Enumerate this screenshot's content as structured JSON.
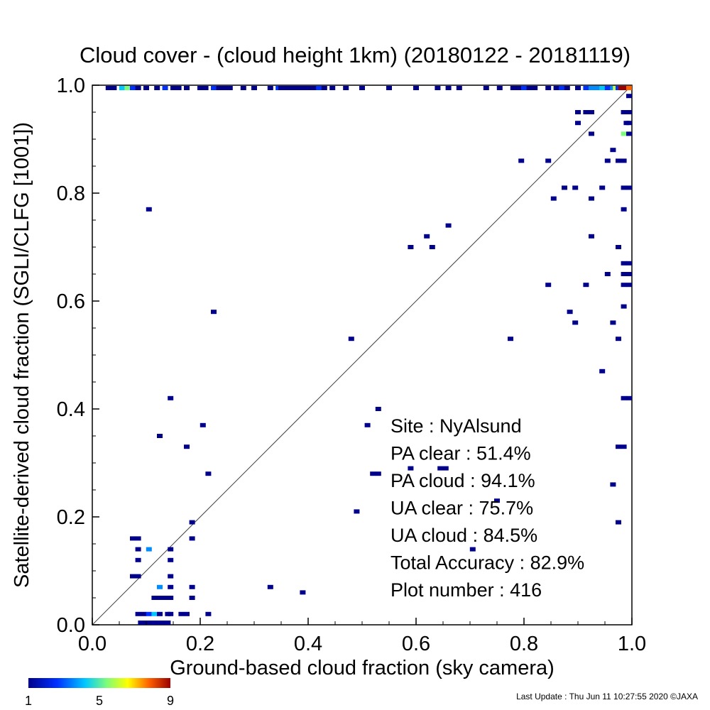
{
  "chart_data": {
    "type": "heatmap",
    "title": "Cloud cover - (cloud height 1km)  (20180122 - 20181119)",
    "xlabel": "Ground-based cloud fraction (sky camera)",
    "ylabel": "Satellite-derived cloud fraction (SGLI/CLFG [1001])",
    "xlim": [
      0.0,
      1.0
    ],
    "ylim": [
      0.0,
      1.0
    ],
    "xticks": [
      "0.0",
      "0.2",
      "0.4",
      "0.6",
      "0.8",
      "1.0"
    ],
    "yticks": [
      "0.0",
      "0.2",
      "0.4",
      "0.6",
      "0.8",
      "1.0"
    ],
    "diagonal_line": true,
    "grid": false,
    "colorbar": {
      "min": 1,
      "max": 9,
      "ticks": [
        "1",
        "5",
        "9"
      ],
      "placement": "bottom-left"
    },
    "stats": [
      {
        "label": "Site : NyAlsund"
      },
      {
        "label": "PA clear :  51.4%"
      },
      {
        "label": "PA cloud :  94.1%"
      },
      {
        "label": "UA clear :  75.7%"
      },
      {
        "label": "UA cloud :  84.5%"
      },
      {
        "label": "Total Accuracy :  82.9%"
      },
      {
        "label": "Plot number :       416"
      }
    ],
    "points": [
      [
        0.03,
        1.0,
        1
      ],
      [
        0.04,
        1.0,
        1
      ],
      [
        0.055,
        1.0,
        4
      ],
      [
        0.065,
        1.0,
        5
      ],
      [
        0.075,
        1.0,
        2
      ],
      [
        0.085,
        1.0,
        1
      ],
      [
        0.1,
        1.0,
        1
      ],
      [
        0.12,
        1.0,
        1
      ],
      [
        0.135,
        1.0,
        2
      ],
      [
        0.15,
        1.0,
        1
      ],
      [
        0.16,
        1.0,
        1
      ],
      [
        0.175,
        1.0,
        1
      ],
      [
        0.2,
        1.0,
        1
      ],
      [
        0.21,
        1.0,
        1
      ],
      [
        0.225,
        1.0,
        2
      ],
      [
        0.235,
        1.0,
        1
      ],
      [
        0.245,
        1.0,
        1
      ],
      [
        0.255,
        1.0,
        1
      ],
      [
        0.28,
        1.0,
        1
      ],
      [
        0.3,
        1.0,
        1
      ],
      [
        0.33,
        1.0,
        1
      ],
      [
        0.345,
        1.0,
        2
      ],
      [
        0.35,
        1.0,
        1
      ],
      [
        0.36,
        1.0,
        1
      ],
      [
        0.37,
        1.0,
        1
      ],
      [
        0.38,
        1.0,
        1
      ],
      [
        0.39,
        1.0,
        1
      ],
      [
        0.4,
        1.0,
        1
      ],
      [
        0.41,
        1.0,
        1
      ],
      [
        0.42,
        1.0,
        2
      ],
      [
        0.43,
        1.0,
        1
      ],
      [
        0.445,
        1.0,
        1
      ],
      [
        0.47,
        1.0,
        1
      ],
      [
        0.5,
        1.0,
        1
      ],
      [
        0.55,
        1.0,
        1
      ],
      [
        0.6,
        1.0,
        1
      ],
      [
        0.64,
        1.0,
        1
      ],
      [
        0.66,
        1.0,
        1
      ],
      [
        0.68,
        1.0,
        1
      ],
      [
        0.73,
        1.0,
        1
      ],
      [
        0.755,
        1.0,
        1
      ],
      [
        0.78,
        1.0,
        1
      ],
      [
        0.79,
        1.0,
        1
      ],
      [
        0.8,
        1.0,
        2
      ],
      [
        0.81,
        1.0,
        1
      ],
      [
        0.82,
        1.0,
        1
      ],
      [
        0.845,
        1.0,
        1
      ],
      [
        0.86,
        1.0,
        1
      ],
      [
        0.87,
        1.0,
        2
      ],
      [
        0.88,
        1.0,
        1
      ],
      [
        0.9,
        1.0,
        1
      ],
      [
        0.915,
        1.0,
        2
      ],
      [
        0.925,
        1.0,
        3
      ],
      [
        0.935,
        1.0,
        3
      ],
      [
        0.945,
        1.0,
        4
      ],
      [
        0.955,
        1.0,
        2
      ],
      [
        0.965,
        1.0,
        3
      ],
      [
        0.97,
        1.0,
        6
      ],
      [
        0.975,
        1.0,
        2
      ],
      [
        0.98,
        1.0,
        9
      ],
      [
        0.985,
        1.0,
        9
      ],
      [
        0.99,
        1.0,
        9
      ],
      [
        0.995,
        1.0,
        8
      ],
      [
        0.995,
        0.98,
        1
      ],
      [
        0.99,
        0.95,
        1
      ],
      [
        0.995,
        0.95,
        1
      ],
      [
        0.985,
        0.95,
        1
      ],
      [
        0.99,
        0.93,
        1
      ],
      [
        0.995,
        0.93,
        1
      ],
      [
        0.985,
        0.91,
        5
      ],
      [
        0.995,
        0.91,
        1
      ],
      [
        0.9,
        0.95,
        1
      ],
      [
        0.915,
        0.95,
        1
      ],
      [
        0.925,
        0.95,
        1
      ],
      [
        0.9,
        0.93,
        1
      ],
      [
        0.925,
        0.91,
        1
      ],
      [
        0.965,
        0.88,
        1
      ],
      [
        0.975,
        0.86,
        1
      ],
      [
        0.985,
        0.86,
        1
      ],
      [
        0.955,
        0.86,
        1
      ],
      [
        0.795,
        0.86,
        1
      ],
      [
        0.845,
        0.86,
        1
      ],
      [
        0.875,
        0.81,
        1
      ],
      [
        0.895,
        0.81,
        1
      ],
      [
        0.945,
        0.81,
        1
      ],
      [
        0.985,
        0.81,
        1
      ],
      [
        0.995,
        0.81,
        1
      ],
      [
        0.855,
        0.79,
        1
      ],
      [
        0.925,
        0.79,
        1
      ],
      [
        0.985,
        0.77,
        1
      ],
      [
        0.66,
        0.74,
        1
      ],
      [
        0.62,
        0.72,
        1
      ],
      [
        0.925,
        0.72,
        1
      ],
      [
        0.59,
        0.7,
        1
      ],
      [
        0.63,
        0.7,
        1
      ],
      [
        0.975,
        0.7,
        1
      ],
      [
        0.985,
        0.67,
        1
      ],
      [
        0.995,
        0.67,
        1
      ],
      [
        0.955,
        0.65,
        1
      ],
      [
        0.985,
        0.65,
        1
      ],
      [
        0.995,
        0.65,
        1
      ],
      [
        0.845,
        0.63,
        1
      ],
      [
        0.915,
        0.63,
        1
      ],
      [
        0.985,
        0.63,
        1
      ],
      [
        0.995,
        0.63,
        1
      ],
      [
        0.985,
        0.59,
        1
      ],
      [
        0.885,
        0.58,
        1
      ],
      [
        0.895,
        0.56,
        1
      ],
      [
        0.965,
        0.56,
        1
      ],
      [
        0.775,
        0.53,
        1
      ],
      [
        0.975,
        0.53,
        1
      ],
      [
        0.48,
        0.53,
        1
      ],
      [
        0.945,
        0.47,
        1
      ],
      [
        0.985,
        0.42,
        1
      ],
      [
        0.995,
        0.42,
        1
      ],
      [
        0.53,
        0.4,
        1
      ],
      [
        0.51,
        0.37,
        1
      ],
      [
        0.975,
        0.33,
        1
      ],
      [
        0.985,
        0.33,
        1
      ],
      [
        0.52,
        0.28,
        1
      ],
      [
        0.53,
        0.28,
        1
      ],
      [
        0.59,
        0.29,
        1
      ],
      [
        0.645,
        0.29,
        1
      ],
      [
        0.655,
        0.29,
        1
      ],
      [
        0.965,
        0.26,
        1
      ],
      [
        0.75,
        0.23,
        1
      ],
      [
        0.49,
        0.21,
        1
      ],
      [
        0.975,
        0.19,
        1
      ],
      [
        0.705,
        0.14,
        1
      ],
      [
        0.33,
        0.07,
        1
      ],
      [
        0.39,
        0.06,
        1
      ],
      [
        0.105,
        0.77,
        1
      ],
      [
        0.225,
        0.58,
        1
      ],
      [
        0.145,
        0.42,
        1
      ],
      [
        0.205,
        0.37,
        1
      ],
      [
        0.125,
        0.35,
        1
      ],
      [
        0.175,
        0.33,
        1
      ],
      [
        0.215,
        0.28,
        1
      ],
      [
        0.185,
        0.19,
        1
      ],
      [
        0.075,
        0.16,
        1
      ],
      [
        0.085,
        0.16,
        1
      ],
      [
        0.185,
        0.16,
        1
      ],
      [
        0.085,
        0.14,
        1
      ],
      [
        0.105,
        0.14,
        3
      ],
      [
        0.145,
        0.14,
        1
      ],
      [
        0.085,
        0.12,
        1
      ],
      [
        0.145,
        0.12,
        1
      ],
      [
        0.075,
        0.09,
        1
      ],
      [
        0.085,
        0.09,
        1
      ],
      [
        0.145,
        0.09,
        1
      ],
      [
        0.125,
        0.07,
        3
      ],
      [
        0.145,
        0.07,
        1
      ],
      [
        0.185,
        0.07,
        1
      ],
      [
        0.115,
        0.05,
        1
      ],
      [
        0.125,
        0.05,
        1
      ],
      [
        0.135,
        0.05,
        1
      ],
      [
        0.145,
        0.05,
        1
      ],
      [
        0.185,
        0.05,
        1
      ],
      [
        0.085,
        0.02,
        1
      ],
      [
        0.095,
        0.02,
        1
      ],
      [
        0.105,
        0.02,
        2
      ],
      [
        0.115,
        0.02,
        4
      ],
      [
        0.125,
        0.02,
        1
      ],
      [
        0.14,
        0.02,
        1
      ],
      [
        0.145,
        0.02,
        1
      ],
      [
        0.165,
        0.02,
        1
      ],
      [
        0.175,
        0.02,
        1
      ],
      [
        0.215,
        0.02,
        1
      ],
      [
        0.09,
        0.0,
        1
      ],
      [
        0.1,
        0.0,
        1
      ],
      [
        0.11,
        0.0,
        1
      ],
      [
        0.12,
        0.0,
        1
      ],
      [
        0.13,
        0.0,
        1
      ],
      [
        0.14,
        0.0,
        1
      ]
    ]
  },
  "footer": {
    "last_update": "Last Update : Thu Jun 11 10:27:55 2020  ©JAXA"
  }
}
